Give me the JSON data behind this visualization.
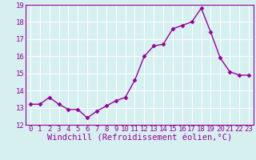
{
  "x": [
    0,
    1,
    2,
    3,
    4,
    5,
    6,
    7,
    8,
    9,
    10,
    11,
    12,
    13,
    14,
    15,
    16,
    17,
    18,
    19,
    20,
    21,
    22,
    23
  ],
  "y": [
    13.2,
    13.2,
    13.6,
    13.2,
    12.9,
    12.9,
    12.4,
    12.8,
    13.1,
    13.4,
    13.6,
    14.6,
    16.0,
    16.6,
    16.7,
    17.6,
    17.8,
    18.0,
    18.8,
    17.4,
    15.9,
    15.1,
    14.9,
    14.9
  ],
  "line_color": "#990099",
  "marker": "D",
  "marker_size": 2.5,
  "bg_color": "#d6f0f0",
  "grid_color": "#ffffff",
  "xlabel": "Windchill (Refroidissement éolien,°C)",
  "ylim": [
    12,
    19
  ],
  "xlim_min": -0.5,
  "xlim_max": 23.5,
  "yticks": [
    12,
    13,
    14,
    15,
    16,
    17,
    18,
    19
  ],
  "xticks": [
    0,
    1,
    2,
    3,
    4,
    5,
    6,
    7,
    8,
    9,
    10,
    11,
    12,
    13,
    14,
    15,
    16,
    17,
    18,
    19,
    20,
    21,
    22,
    23
  ],
  "tick_fontsize": 6.5,
  "xlabel_fontsize": 7.5,
  "line_width": 1.0
}
